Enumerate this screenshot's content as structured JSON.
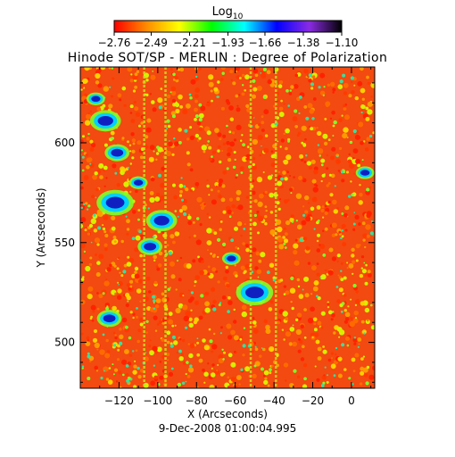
{
  "chart_data": {
    "type": "heatmap",
    "title": "Hinode SOT/SP - MERLIN : Degree of Polarization",
    "xlabel": "X (Arcseconds)",
    "ylabel": "Y (Arcseconds)",
    "footer": "9-Dec-2008 01:00:04.995",
    "colorbar": {
      "title_base": "Log",
      "title_sub": "10",
      "min": -2.76,
      "max": -1.1,
      "tick_labels": [
        "-2.76",
        "-2.49",
        "-2.21",
        "-1.93",
        "-1.66",
        "-1.38",
        "-1.10"
      ],
      "colormap": [
        "#ff0000",
        "#ff8c00",
        "#ffff00",
        "#00ff00",
        "#00ffff",
        "#0000ff",
        "#8a2be2",
        "#000000"
      ]
    },
    "xlim": [
      -140,
      12
    ],
    "ylim": [
      477,
      638
    ],
    "x_ticks": [
      -120,
      -100,
      -80,
      -60,
      -40,
      -20,
      0
    ],
    "x_tick_labels": [
      "−120",
      "−100",
      "−80",
      "−60",
      "−40",
      "−20",
      "0"
    ],
    "y_ticks": [
      500,
      550,
      600
    ],
    "y_tick_labels": [
      "500",
      "550",
      "600"
    ],
    "scan_lines_x": [
      -107,
      -96,
      -52,
      -39
    ],
    "strong_regions": [
      {
        "x": -127,
        "y": 611,
        "r": 5
      },
      {
        "x": -121,
        "y": 595,
        "r": 4
      },
      {
        "x": -122,
        "y": 570,
        "r": 6
      },
      {
        "x": -98,
        "y": 561,
        "r": 5
      },
      {
        "x": -104,
        "y": 548,
        "r": 4
      },
      {
        "x": -125,
        "y": 512,
        "r": 4
      },
      {
        "x": -50,
        "y": 525,
        "r": 6
      },
      {
        "x": -62,
        "y": 542,
        "r": 3
      },
      {
        "x": 7,
        "y": 585,
        "r": 3
      },
      {
        "x": -132,
        "y": 622,
        "r": 3
      },
      {
        "x": -110,
        "y": 580,
        "r": 3
      }
    ]
  }
}
